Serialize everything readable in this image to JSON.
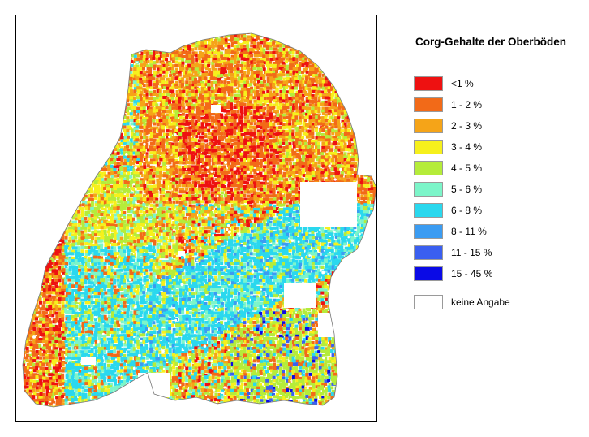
{
  "legend": {
    "title": "Corg-Gehalte der Oberböden",
    "items": [
      {
        "label": "<1 %",
        "color": "#ee1111"
      },
      {
        "label": "1 - 2 %",
        "color": "#f26a18"
      },
      {
        "label": "2 - 3 %",
        "color": "#f5a418"
      },
      {
        "label": "3 - 4 %",
        "color": "#f6f01c"
      },
      {
        "label": "4 - 5 %",
        "color": "#b5ec3a"
      },
      {
        "label": "5 - 6 %",
        "color": "#7cf5c9"
      },
      {
        "label": "6 - 8 %",
        "color": "#2ad8ee"
      },
      {
        "label": "8 - 11 %",
        "color": "#3b9cf2"
      },
      {
        "label": "11 - 15 %",
        "color": "#3a5ff0"
      },
      {
        "label": "15 - 45 %",
        "color": "#0a0ae6"
      },
      {
        "label": "keine Angabe",
        "color": "#ffffff"
      }
    ]
  }
}
